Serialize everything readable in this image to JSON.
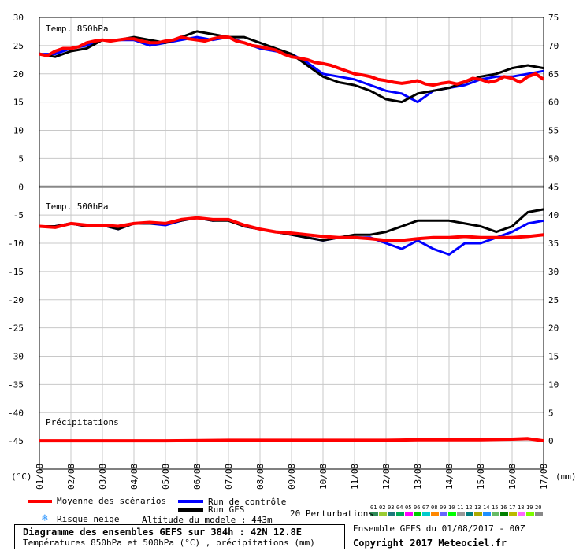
{
  "chart_data": {
    "type": "line",
    "title": "Diagramme des ensembles GEFS sur 384h : 42N 12.8E",
    "subtitle": "Températures 850hPa et 500hPa (°C) , précipitations (mm)",
    "x_ticks": [
      "01/08",
      "02/08",
      "03/08",
      "04/08",
      "05/08",
      "06/08",
      "07/08",
      "08/08",
      "09/08",
      "10/08",
      "11/08",
      "12/08",
      "13/08",
      "14/08",
      "15/08",
      "16/08",
      "17/08"
    ],
    "left_ticks": [
      "30",
      "25",
      "20",
      "15",
      "10",
      "5",
      "0",
      "-5",
      "-10",
      "-15",
      "-20",
      "-25",
      "-30",
      "-35",
      "-40",
      "-45"
    ],
    "right_ticks": [
      "75",
      "70",
      "65",
      "60",
      "55",
      "50",
      "45",
      "40",
      "35",
      "30",
      "25",
      "20",
      "15",
      "10",
      "5",
      "0"
    ],
    "left_unit": "(°C)",
    "right_unit": "(mm)",
    "panel_labels": {
      "t850": "Temp. 850hPa",
      "t500": "Temp. 500hPa",
      "precip": "Précipitations"
    },
    "y_range_left": [
      -50,
      30
    ],
    "x_range_days": [
      0,
      16
    ],
    "t850": {
      "mean_x": [
        0,
        0.25,
        0.5,
        0.75,
        1,
        1.25,
        1.5,
        1.75,
        2,
        2.25,
        2.5,
        2.75,
        3,
        3.25,
        3.5,
        3.75,
        4,
        4.25,
        4.5,
        4.75,
        5,
        5.25,
        5.5,
        5.75,
        6,
        6.25,
        6.5,
        6.75,
        7,
        7.25,
        7.5,
        7.75,
        8,
        8.25,
        8.5,
        8.75,
        9,
        9.25,
        9.5,
        9.75,
        10,
        10.25,
        10.5,
        10.75,
        11,
        11.25,
        11.5,
        11.75,
        12,
        12.25,
        12.5,
        12.75,
        13,
        13.25,
        13.5,
        13.75,
        14,
        14.25,
        14.5,
        14.75,
        15,
        15.25,
        15.5,
        15.75,
        16
      ],
      "mean": [
        23.5,
        23.2,
        24,
        24.5,
        24.5,
        24.8,
        25.5,
        25.8,
        26,
        25.8,
        26,
        26.2,
        26.2,
        25.8,
        25.5,
        25.5,
        25.8,
        26,
        26.5,
        26.2,
        26,
        25.8,
        26.2,
        26.5,
        26.5,
        25.8,
        25.5,
        25,
        24.8,
        24.5,
        24.2,
        23.5,
        23,
        22.8,
        22.5,
        22,
        21.8,
        21.5,
        21,
        20.5,
        20,
        19.8,
        19.5,
        19,
        18.8,
        18.5,
        18.3,
        18.5,
        18.8,
        18.2,
        18,
        18.3,
        18.5,
        18.2,
        18.6,
        19.2,
        19,
        18.5,
        18.8,
        19.5,
        19.2,
        18.5,
        19.5,
        20,
        19
      ],
      "control_x": [
        0,
        0.5,
        1,
        1.5,
        2,
        2.5,
        3,
        3.5,
        4,
        4.5,
        5,
        5.5,
        6,
        6.5,
        7,
        7.5,
        8,
        8.5,
        9,
        9.5,
        10,
        10.5,
        11,
        11.5,
        12,
        12.5,
        13,
        13.5,
        14,
        14.5,
        15,
        15.5,
        16
      ],
      "control": [
        23.5,
        23.5,
        24.5,
        25,
        26,
        26,
        26,
        25,
        25.5,
        26,
        26.5,
        26,
        26.5,
        25.5,
        24.5,
        24,
        23.5,
        22,
        20,
        19.5,
        19,
        18,
        17,
        16.5,
        15,
        17,
        17.5,
        18,
        19,
        19.5,
        19.5,
        20,
        20.5
      ],
      "gfs_x": [
        0,
        0.5,
        1,
        1.5,
        2,
        2.5,
        3,
        3.5,
        4,
        4.5,
        5,
        5.5,
        6,
        6.5,
        7,
        7.5,
        8,
        8.5,
        9,
        9.5,
        10,
        10.5,
        11,
        11.5,
        12,
        12.5,
        13,
        13.5,
        14,
        14.5,
        15,
        15.5,
        16
      ],
      "gfs": [
        23.5,
        23,
        24,
        24.5,
        26,
        26,
        26.5,
        26,
        25.5,
        26.5,
        27.5,
        27,
        26.5,
        26.5,
        25.5,
        24.5,
        23.5,
        21.5,
        19.5,
        18.5,
        18,
        17,
        15.5,
        15,
        16.5,
        17,
        17.5,
        18.5,
        19.5,
        20,
        21,
        21.5,
        21
      ]
    },
    "t500": {
      "mean_x": [
        0,
        0.5,
        1,
        1.5,
        2,
        2.5,
        3,
        3.5,
        4,
        4.5,
        5,
        5.5,
        6,
        6.5,
        7,
        7.5,
        8,
        8.5,
        9,
        9.5,
        10,
        10.5,
        11,
        11.5,
        12,
        12.5,
        13,
        13.5,
        14,
        14.5,
        15,
        15.5,
        16
      ],
      "mean": [
        -7,
        -7.2,
        -6.5,
        -6.8,
        -6.8,
        -7,
        -6.5,
        -6.3,
        -6.5,
        -5.8,
        -5.5,
        -5.8,
        -5.8,
        -6.8,
        -7.5,
        -8,
        -8.2,
        -8.5,
        -8.8,
        -9,
        -9,
        -9.2,
        -9.5,
        -9.5,
        -9.2,
        -9,
        -9,
        -8.8,
        -9,
        -9,
        -9,
        -8.8,
        -8.5
      ],
      "control_x": [
        0,
        0.5,
        1,
        1.5,
        2,
        2.5,
        3,
        3.5,
        4,
        4.5,
        5,
        5.5,
        6,
        6.5,
        7,
        7.5,
        8,
        8.5,
        9,
        9.5,
        10,
        10.5,
        11,
        11.5,
        12,
        12.5,
        13,
        13.5,
        14,
        14.5,
        15,
        15.5,
        16
      ],
      "control": [
        -7,
        -7,
        -6.5,
        -7,
        -6.8,
        -7.5,
        -6.5,
        -6.5,
        -6.8,
        -6,
        -5.5,
        -6,
        -5.8,
        -7,
        -7.5,
        -8,
        -8.5,
        -9,
        -9.5,
        -9,
        -9,
        -9,
        -10,
        -11,
        -9.5,
        -11,
        -12,
        -10,
        -10,
        -9,
        -8,
        -6.5,
        -6
      ],
      "gfs_x": [
        0,
        0.5,
        1,
        1.5,
        2,
        2.5,
        3,
        3.5,
        4,
        4.5,
        5,
        5.5,
        6,
        6.5,
        7,
        7.5,
        8,
        8.5,
        9,
        9.5,
        10,
        10.5,
        11,
        11.5,
        12,
        12.5,
        13,
        13.5,
        14,
        14.5,
        15,
        15.5,
        16
      ],
      "gfs": [
        -7,
        -7,
        -6.5,
        -7,
        -6.8,
        -7.5,
        -6.5,
        -6.5,
        -6.5,
        -6,
        -5.5,
        -6,
        -6,
        -7,
        -7.5,
        -8,
        -8.5,
        -9,
        -9.5,
        -9,
        -8.5,
        -8.5,
        -8,
        -7,
        -6,
        -6,
        -6,
        -6.5,
        -7,
        -8,
        -7,
        -4.5,
        -4
      ]
    },
    "precip": {
      "mean_x": [
        0,
        4,
        6,
        8,
        10,
        11,
        12,
        13,
        14,
        15,
        15.5,
        16
      ],
      "mean": [
        0,
        0,
        0.1,
        0.1,
        0.1,
        0.1,
        0.2,
        0.2,
        0.2,
        0.3,
        0.4,
        0
      ]
    },
    "legend": {
      "mean": "Moyenne des scénarios",
      "control": "Run de contrôle",
      "gfs": "Run GFS",
      "perturbations": "20 Perturbations",
      "perturbation_ids": [
        "01",
        "02",
        "03",
        "04",
        "05",
        "06",
        "07",
        "08",
        "09",
        "10",
        "11",
        "12",
        "13",
        "14",
        "15",
        "16",
        "17",
        "18",
        "19",
        "20"
      ],
      "snow": "Risque neige",
      "altitude": "Altitude du modele : 443m"
    },
    "colors": {
      "mean": "#ff0000",
      "control": "#0000ff",
      "gfs": "#000000",
      "grid": "#c8c8c8",
      "perturbations": [
        "#2e8b57",
        "#9acd32",
        "#1b7a7a",
        "#00aa55",
        "#ff00ff",
        "#00cc00",
        "#00cccc",
        "#ff8800",
        "#6666ff",
        "#00ff00",
        "#999999",
        "#008080",
        "#aaaa00",
        "#1e90ff",
        "#66bb66",
        "#008000",
        "#bbbb00",
        "#ff66ff",
        "#7cfc00",
        "#888888"
      ]
    }
  },
  "footer": {
    "title": "Diagramme des ensembles GEFS sur 384h : 42N 12.8E",
    "subtitle": "Températures 850hPa et 500hPa (°C) , précipitations (mm)",
    "run_info": "Ensemble GEFS du 01/08/2017 - 00Z",
    "copyright": "Copyright 2017 Meteociel.fr"
  }
}
